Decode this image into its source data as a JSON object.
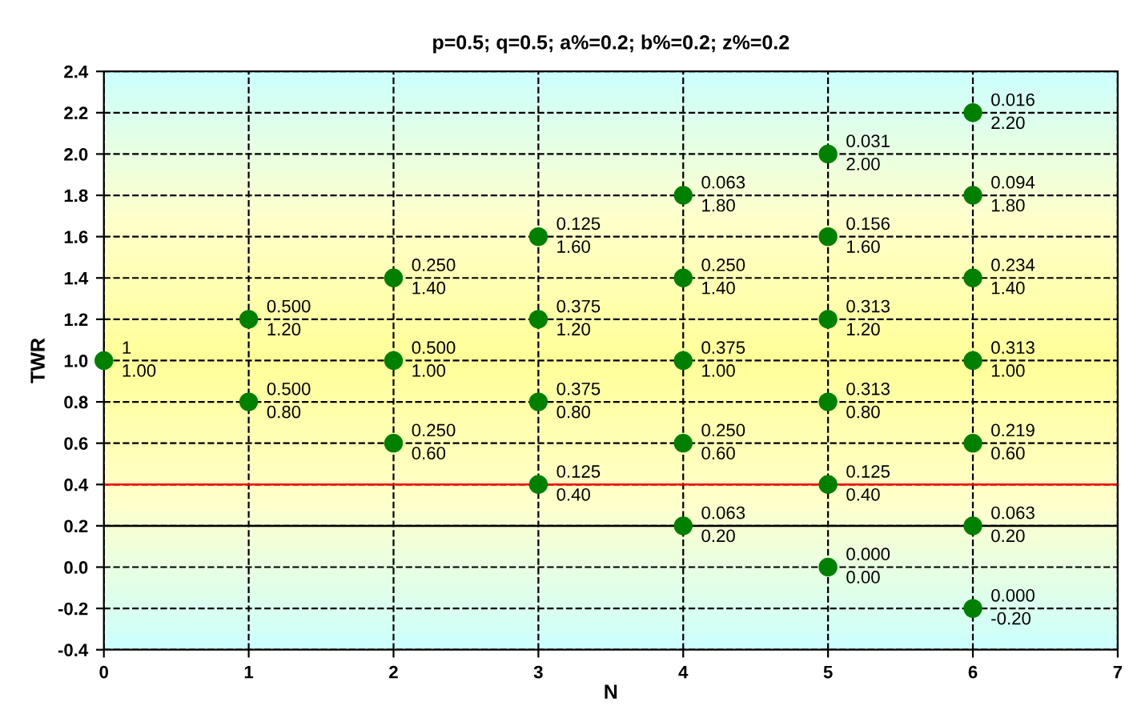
{
  "chart_data": {
    "type": "scatter",
    "title": "p=0.5; q=0.5; a%=0.2; b%=0.2; z%=0.2",
    "xlabel": "N",
    "ylabel": "TWR",
    "x": [
      0,
      1,
      1,
      2,
      2,
      2,
      3,
      3,
      3,
      3,
      4,
      4,
      4,
      4,
      4,
      5,
      5,
      5,
      5,
      5,
      5,
      6,
      6,
      6,
      6,
      6,
      6,
      6
    ],
    "series": [
      {
        "color": "#008000",
        "values": [
          1.0,
          1.2,
          0.8,
          1.4,
          1.0,
          0.6,
          1.6,
          1.2,
          0.8,
          0.4,
          1.8,
          1.4,
          1.0,
          0.6,
          0.2,
          2.0,
          1.6,
          1.2,
          0.8,
          0.4,
          0.0,
          2.2,
          1.8,
          1.4,
          1.0,
          0.6,
          0.2,
          -0.2
        ],
        "value_labels": [
          "1\n1.00",
          "0.500\n1.20",
          "0.500\n0.80",
          "0.250\n1.40",
          "0.500\n1.00",
          "0.250\n0.60",
          "0.125\n1.60",
          "0.375\n1.20",
          "0.375\n0.80",
          "0.125\n0.40",
          "0.063\n1.80",
          "0.250\n1.40",
          "0.375\n1.00",
          "0.250\n0.60",
          "0.063\n0.20",
          "0.031\n2.00",
          "0.156\n1.60",
          "0.313\n1.20",
          "0.313\n0.80",
          "0.125\n0.40",
          "0.000\n0.00",
          "0.016\n2.20",
          "0.094\n1.80",
          "0.234\n1.40",
          "0.313\n1.00",
          "0.219\n0.60",
          "0.063\n0.20",
          "0.000\n-0.20"
        ]
      }
    ],
    "xlim": [
      0,
      7
    ],
    "xticks": [
      0,
      1,
      2,
      3,
      4,
      5,
      6,
      7
    ],
    "ylim": [
      -0.4,
      2.4
    ],
    "yticks": [
      {
        "value": -0.4,
        "label": "-0.4"
      },
      {
        "value": -0.2,
        "label": "-0.2"
      },
      {
        "value": 0.0,
        "label": "0.0"
      },
      {
        "value": 0.2,
        "label": "0.2"
      },
      {
        "value": 0.4,
        "label": "0.4"
      },
      {
        "value": 0.6,
        "label": "0.6"
      },
      {
        "value": 0.8,
        "label": "0.8"
      },
      {
        "value": 1.0,
        "label": "1.0"
      },
      {
        "value": 1.2,
        "label": "1.2"
      },
      {
        "value": 1.4,
        "label": "1.4"
      },
      {
        "value": 1.6,
        "label": "1.6"
      },
      {
        "value": 1.8,
        "label": "1.8"
      },
      {
        "value": 2.0,
        "label": "2.0"
      },
      {
        "value": 2.2,
        "label": "2.2"
      },
      {
        "value": 2.4,
        "label": "2.4"
      }
    ],
    "ref_lines": [
      {
        "axis": "y",
        "value": 0.4,
        "color": "#ff0000",
        "line_style": "solid"
      },
      {
        "axis": "y",
        "value": 0.2,
        "color": "#000000",
        "line_style": "solid"
      }
    ],
    "grid": true,
    "line_style": "dashed",
    "marker": "circle",
    "legend": false
  }
}
